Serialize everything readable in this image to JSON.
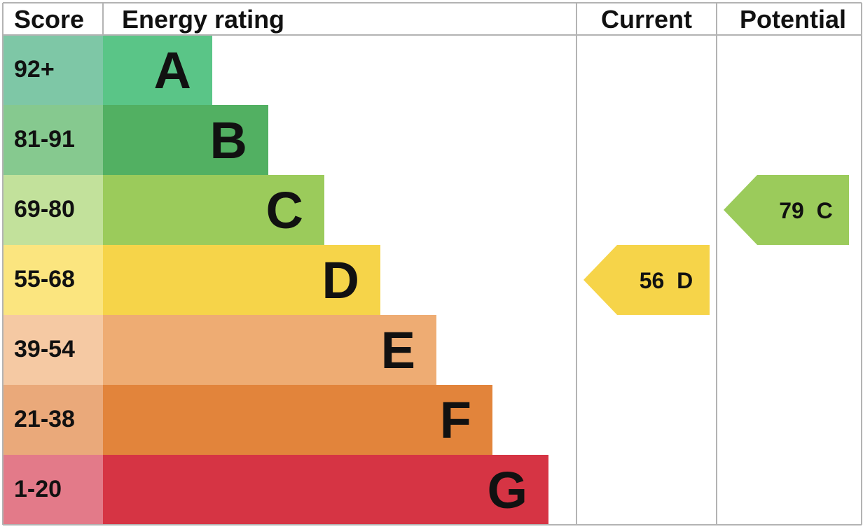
{
  "headers": {
    "score": "Score",
    "energy_rating": "Energy rating",
    "current": "Current",
    "potential": "Potential"
  },
  "chart_data": {
    "type": "bar",
    "categories": [
      "A",
      "B",
      "C",
      "D",
      "E",
      "F",
      "G"
    ],
    "bands": [
      {
        "letter": "A",
        "range": "92+",
        "min": 92,
        "max": 100,
        "bar_color": "#5ac587",
        "score_color": "#7ec7a6"
      },
      {
        "letter": "B",
        "range": "81-91",
        "min": 81,
        "max": 91,
        "bar_color": "#52b062",
        "score_color": "#86c98f"
      },
      {
        "letter": "C",
        "range": "69-80",
        "min": 69,
        "max": 80,
        "bar_color": "#9bcb5b",
        "score_color": "#c2e19b"
      },
      {
        "letter": "D",
        "range": "55-68",
        "min": 55,
        "max": 68,
        "bar_color": "#f6d449",
        "score_color": "#fbe57f"
      },
      {
        "letter": "E",
        "range": "39-54",
        "min": 39,
        "max": 54,
        "bar_color": "#eeac73",
        "score_color": "#f5c9a3"
      },
      {
        "letter": "F",
        "range": "21-38",
        "min": 21,
        "max": 38,
        "bar_color": "#e2843b",
        "score_color": "#eaa97a"
      },
      {
        "letter": "G",
        "range": "1-20",
        "min": 1,
        "max": 20,
        "bar_color": "#d63444",
        "score_color": "#e37a89"
      }
    ],
    "current": {
      "value": 56,
      "letter": "D",
      "label": "56  D",
      "color": "#f6d449"
    },
    "potential": {
      "value": 79,
      "letter": "C",
      "label": "79  C",
      "color": "#9bcb5b"
    }
  }
}
